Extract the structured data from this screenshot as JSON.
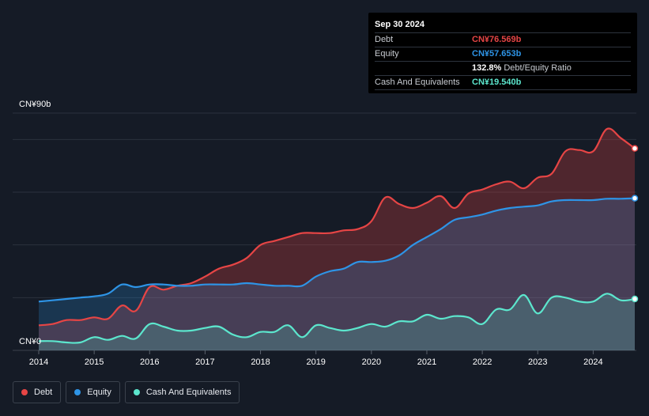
{
  "tooltip": {
    "date": "Sep 30 2024",
    "rows": [
      {
        "label": "Debt",
        "value": "CN¥76.569b",
        "color": "#e64545"
      },
      {
        "label": "Equity",
        "value": "CN¥57.653b",
        "color": "#2e94e6"
      },
      {
        "label": "",
        "value": "132.8%",
        "sub": "Debt/Equity Ratio",
        "color": "#ffffff"
      },
      {
        "label": "Cash And Equivalents",
        "value": "CN¥19.540b",
        "color": "#5ce6cd"
      }
    ]
  },
  "legend": [
    {
      "label": "Debt",
      "color": "#e64545"
    },
    {
      "label": "Equity",
      "color": "#2e94e6"
    },
    {
      "label": "Cash And Equivalents",
      "color": "#5ce6cd"
    }
  ],
  "chart_data": {
    "type": "area",
    "title": "",
    "xlabel": "",
    "ylabel": "",
    "y_top_label": "CN¥90b",
    "y_bottom_label": "CN¥0",
    "ylim": [
      0,
      90
    ],
    "xlim": [
      2014.0,
      2024.75
    ],
    "x_ticks": [
      2014,
      2015,
      2016,
      2017,
      2018,
      2019,
      2020,
      2021,
      2022,
      2023,
      2024
    ],
    "x_tick_labels": [
      "2014",
      "2015",
      "2016",
      "2017",
      "2018",
      "2019",
      "2020",
      "2021",
      "2022",
      "2023",
      "2024"
    ],
    "grid": true,
    "series": [
      {
        "name": "Debt",
        "color": "#e64545",
        "x": [
          2014.0,
          2014.25,
          2014.5,
          2014.75,
          2015.0,
          2015.25,
          2015.5,
          2015.75,
          2016.0,
          2016.25,
          2016.5,
          2016.75,
          2017.0,
          2017.25,
          2017.5,
          2017.75,
          2018.0,
          2018.25,
          2018.5,
          2018.75,
          2019.0,
          2019.25,
          2019.5,
          2019.75,
          2020.0,
          2020.25,
          2020.5,
          2020.75,
          2021.0,
          2021.25,
          2021.5,
          2021.75,
          2022.0,
          2022.25,
          2022.5,
          2022.75,
          2023.0,
          2023.25,
          2023.5,
          2023.75,
          2024.0,
          2024.25,
          2024.5,
          2024.75
        ],
        "values": [
          9.5,
          10.0,
          11.5,
          11.5,
          12.5,
          12.0,
          17.0,
          15.0,
          24.0,
          23.0,
          24.5,
          25.5,
          28.0,
          31.0,
          32.5,
          35.0,
          40.0,
          41.5,
          43.0,
          44.5,
          44.5,
          44.5,
          45.5,
          46.0,
          49.0,
          58.0,
          55.5,
          54.0,
          56.0,
          58.5,
          54.0,
          59.5,
          61.0,
          63.0,
          64.0,
          61.5,
          65.5,
          67.0,
          75.5,
          76.0,
          75.5,
          84.0,
          80.5,
          76.6
        ]
      },
      {
        "name": "Equity",
        "color": "#2e94e6",
        "x": [
          2014.0,
          2014.25,
          2014.5,
          2014.75,
          2015.0,
          2015.25,
          2015.5,
          2015.75,
          2016.0,
          2016.25,
          2016.5,
          2016.75,
          2017.0,
          2017.25,
          2017.5,
          2017.75,
          2018.0,
          2018.25,
          2018.5,
          2018.75,
          2019.0,
          2019.25,
          2019.5,
          2019.75,
          2020.0,
          2020.25,
          2020.5,
          2020.75,
          2021.0,
          2021.25,
          2021.5,
          2021.75,
          2022.0,
          2022.25,
          2022.5,
          2022.75,
          2023.0,
          2023.25,
          2023.5,
          2023.75,
          2024.0,
          2024.25,
          2024.5,
          2024.75
        ],
        "values": [
          18.5,
          19.0,
          19.5,
          20.0,
          20.5,
          21.5,
          25.0,
          24.0,
          25.0,
          25.0,
          24.5,
          24.5,
          25.0,
          25.0,
          25.0,
          25.5,
          25.0,
          24.5,
          24.5,
          24.5,
          28.0,
          30.0,
          31.0,
          33.5,
          33.5,
          34.0,
          36.0,
          40.0,
          43.0,
          46.0,
          49.5,
          50.5,
          51.5,
          53.0,
          54.0,
          54.5,
          55.0,
          56.5,
          57.0,
          57.0,
          57.0,
          57.5,
          57.5,
          57.7
        ]
      },
      {
        "name": "Cash And Equivalents",
        "color": "#5ce6cd",
        "x": [
          2014.0,
          2014.25,
          2014.5,
          2014.75,
          2015.0,
          2015.25,
          2015.5,
          2015.75,
          2016.0,
          2016.25,
          2016.5,
          2016.75,
          2017.0,
          2017.25,
          2017.5,
          2017.75,
          2018.0,
          2018.25,
          2018.5,
          2018.75,
          2019.0,
          2019.25,
          2019.5,
          2019.75,
          2020.0,
          2020.25,
          2020.5,
          2020.75,
          2021.0,
          2021.25,
          2021.5,
          2021.75,
          2022.0,
          2022.25,
          2022.5,
          2022.75,
          2023.0,
          2023.25,
          2023.5,
          2023.75,
          2024.0,
          2024.25,
          2024.5,
          2024.75
        ],
        "values": [
          3.5,
          3.5,
          3.0,
          3.0,
          5.0,
          4.0,
          5.5,
          4.5,
          10.0,
          9.0,
          7.5,
          7.5,
          8.5,
          9.0,
          6.0,
          5.0,
          7.0,
          7.0,
          9.5,
          5.0,
          9.5,
          8.5,
          7.5,
          8.5,
          10.0,
          9.0,
          11.0,
          11.0,
          13.5,
          12.0,
          13.0,
          12.5,
          10.0,
          15.5,
          15.5,
          21.0,
          14.0,
          20.0,
          20.0,
          18.5,
          18.5,
          21.5,
          19.0,
          19.5
        ]
      }
    ]
  }
}
